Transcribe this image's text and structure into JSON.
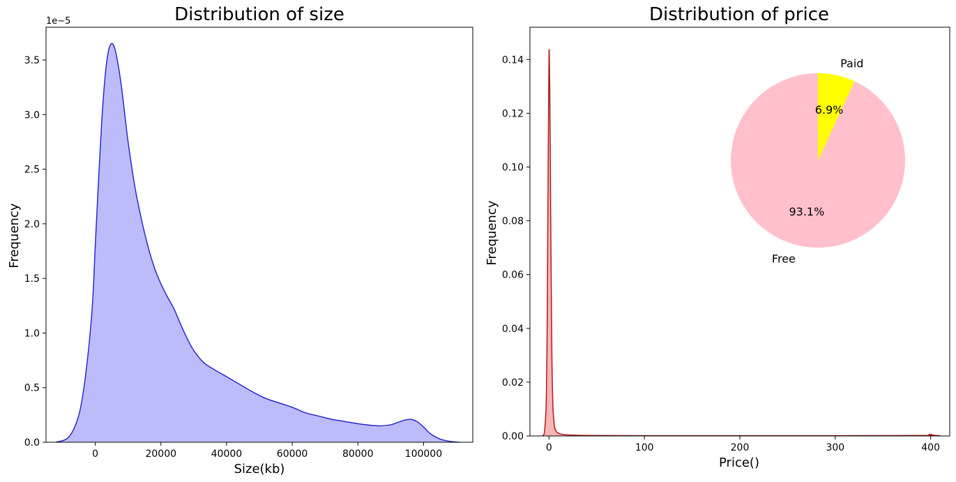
{
  "chart_data": [
    {
      "type": "area",
      "title": "Distribution of size",
      "xlabel": "Size(kb)",
      "ylabel": "Frequency",
      "y_offset_text": "1e−5",
      "xlim": [
        -15000,
        115000
      ],
      "ylim": [
        0,
        3.8
      ],
      "xticks": [
        0,
        20000,
        40000,
        60000,
        80000,
        100000
      ],
      "xtick_labels": [
        "0",
        "20000",
        "40000",
        "60000",
        "80000",
        "100000"
      ],
      "yticks": [
        0.0,
        0.5,
        1.0,
        1.5,
        2.0,
        2.5,
        3.0,
        3.5
      ],
      "ytick_labels": [
        "0.0",
        "0.5",
        "1.0",
        "1.5",
        "2.0",
        "2.5",
        "3.0",
        "3.5"
      ],
      "grid": false,
      "colors": {
        "fill": "#bcbcfb",
        "line": "#2a2acc"
      },
      "x": [
        -12000,
        -8000,
        -5000,
        -3000,
        -1000,
        0,
        1000,
        2000,
        3000,
        4000,
        5000,
        6000,
        7000,
        8000,
        9000,
        10000,
        12000,
        14000,
        16000,
        18000,
        20000,
        22000,
        24000,
        26000,
        28000,
        30000,
        33000,
        36000,
        40000,
        44000,
        48000,
        52000,
        56000,
        60000,
        64000,
        68000,
        72000,
        76000,
        80000,
        84000,
        87000,
        90000,
        92000,
        94000,
        96000,
        98000,
        100000,
        102000,
        105000,
        108000,
        111000
      ],
      "values": [
        0.0,
        0.05,
        0.25,
        0.6,
        1.2,
        1.8,
        2.4,
        2.95,
        3.35,
        3.58,
        3.65,
        3.6,
        3.45,
        3.25,
        3.0,
        2.75,
        2.35,
        2.05,
        1.8,
        1.6,
        1.45,
        1.33,
        1.22,
        1.08,
        0.95,
        0.84,
        0.73,
        0.67,
        0.6,
        0.53,
        0.46,
        0.4,
        0.36,
        0.32,
        0.27,
        0.24,
        0.21,
        0.19,
        0.17,
        0.155,
        0.15,
        0.16,
        0.18,
        0.2,
        0.21,
        0.19,
        0.14,
        0.08,
        0.03,
        0.008,
        0.0
      ]
    },
    {
      "type": "area",
      "title": "Distribution of price",
      "xlabel": "Price()",
      "ylabel": "Frequency",
      "xlim": [
        -20,
        420
      ],
      "ylim": [
        0,
        0.152
      ],
      "xticks": [
        0,
        100,
        200,
        300,
        400
      ],
      "xtick_labels": [
        "0",
        "100",
        "200",
        "300",
        "400"
      ],
      "yticks": [
        0.0,
        0.02,
        0.04,
        0.06,
        0.08,
        0.1,
        0.12,
        0.14
      ],
      "ytick_labels": [
        "0.00",
        "0.02",
        "0.04",
        "0.06",
        "0.08",
        "0.10",
        "0.12",
        "0.14"
      ],
      "grid": false,
      "colors": {
        "fill": "#f7b5b5",
        "line": "#b01c1c"
      },
      "x": [
        -7,
        -5,
        -3,
        -2,
        -1,
        0,
        1,
        2,
        3,
        4,
        5,
        6,
        8,
        10,
        14,
        20,
        40,
        100,
        200,
        300,
        395,
        398,
        400,
        402,
        405,
        410
      ],
      "values": [
        0.0,
        0.001,
        0.012,
        0.04,
        0.095,
        0.143,
        0.12,
        0.07,
        0.03,
        0.012,
        0.006,
        0.003,
        0.0015,
        0.001,
        0.0006,
        0.0004,
        0.0002,
        0.0001,
        0.0001,
        0.0001,
        0.0002,
        0.0005,
        0.0006,
        0.0004,
        0.0002,
        0.0001
      ]
    },
    {
      "type": "pie",
      "labels": [
        "Free",
        "Paid"
      ],
      "values": [
        93.1,
        6.9
      ],
      "pct_labels": [
        "93.1%",
        "6.9%"
      ],
      "colors": [
        "#ffc0cb",
        "#ffff00"
      ],
      "placement": "inset top-right of price chart"
    }
  ]
}
